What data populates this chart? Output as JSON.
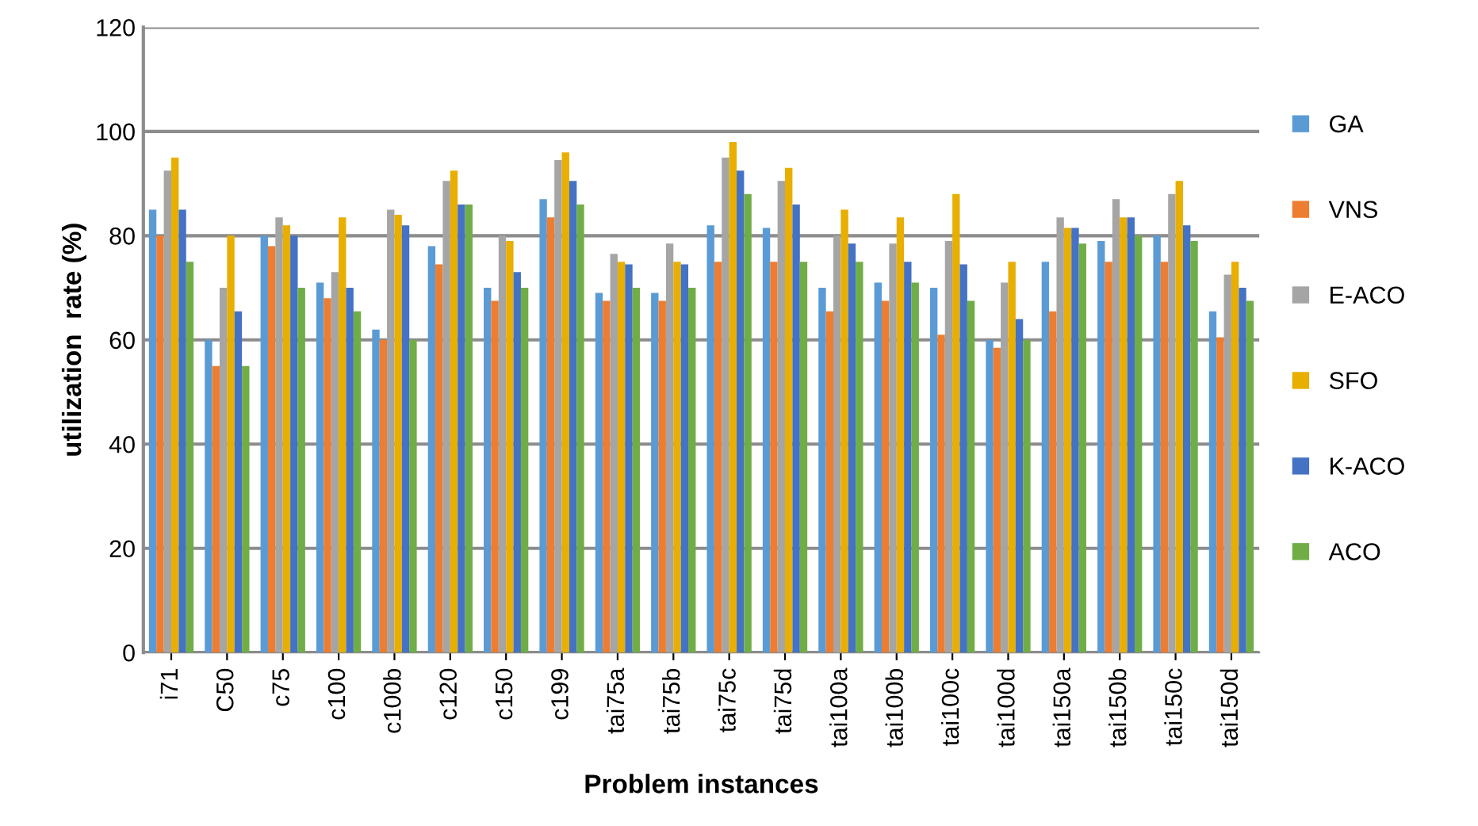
{
  "chart_data": {
    "type": "bar",
    "xlabel": "Problem instances",
    "ylabel": "utilization  rate (%)",
    "categories": [
      "i71",
      "C50",
      "c75",
      "c100",
      "c100b",
      "c120",
      "c150",
      "c199",
      "tai75a",
      "tai75b",
      "tai75c",
      "tai75d",
      "tai100a",
      "tai100b",
      "tai100c",
      "tai100d",
      "tai150a",
      "tai150b",
      "tai150c",
      "tai150d"
    ],
    "series": [
      {
        "name": "GA",
        "color": "#5b9bd5",
        "values": [
          85,
          60,
          80,
          71,
          62,
          78,
          70,
          87,
          69,
          69,
          82,
          81.5,
          70,
          71,
          70,
          60,
          75,
          79,
          80,
          65.5
        ]
      },
      {
        "name": "VNS",
        "color": "#ed7d31",
        "values": [
          80,
          55,
          78,
          68,
          60,
          74.5,
          67.5,
          83.5,
          67.5,
          67.5,
          75,
          75,
          65.5,
          67.5,
          61,
          58.5,
          65.5,
          75,
          75,
          60.5
        ]
      },
      {
        "name": "E-ACO",
        "color": "#a5a5a5",
        "values": [
          92.5,
          70,
          83.5,
          73,
          85,
          90.5,
          80,
          94.5,
          76.5,
          78.5,
          95,
          90.5,
          80,
          78.5,
          79,
          71,
          83.5,
          87,
          88,
          72.5
        ]
      },
      {
        "name": "SFO",
        "color": "#e8ae00",
        "values": [
          95,
          80,
          82,
          83.5,
          84,
          92.5,
          79,
          96,
          75,
          75,
          98,
          93,
          85,
          83.5,
          88,
          75,
          81.5,
          83.5,
          90.5,
          75
        ]
      },
      {
        "name": "K-ACO",
        "color": "#4472c4",
        "values": [
          85,
          65.5,
          80,
          70,
          82,
          86,
          73,
          90.5,
          74.5,
          74.5,
          92.5,
          86,
          78.5,
          75,
          74.5,
          64,
          81.5,
          83.5,
          82,
          70
        ]
      },
      {
        "name": "ACO",
        "color": "#70ad47",
        "values": [
          75,
          55,
          70,
          65.5,
          60,
          86,
          70,
          86,
          70,
          70,
          88,
          75,
          75,
          71,
          67.5,
          60,
          78.5,
          80,
          79,
          67.5
        ]
      }
    ],
    "ylim": [
      0,
      120
    ],
    "yticks": [
      0,
      20,
      40,
      60,
      80,
      100,
      120
    ],
    "grid": "y",
    "legend": "right"
  }
}
